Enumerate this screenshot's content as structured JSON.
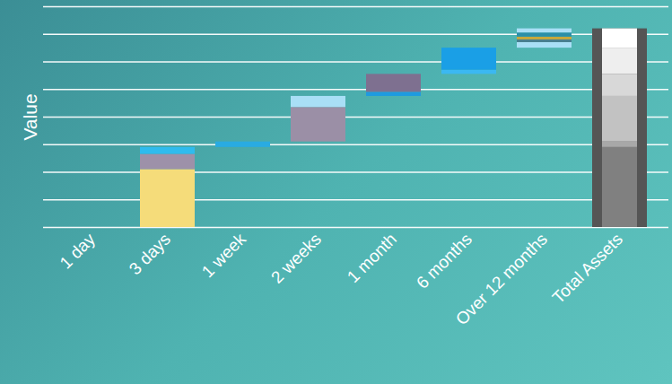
{
  "chart_data": {
    "type": "waterfall",
    "y_label": "Value",
    "categories": [
      "1 day",
      "3 days",
      "1 week",
      "2 weeks",
      "1 month",
      "6 months",
      "Over 12 months",
      "Total Assets"
    ],
    "values": [
      [],
      [
        2.1,
        0.55,
        0.25
      ],
      [
        0.2
      ],
      [
        1.25,
        0.4
      ],
      [
        0.15,
        0.65
      ],
      [
        0.15,
        0.8
      ],
      [
        0.2,
        0.1,
        0.1,
        0.15,
        0.15
      ],
      [
        2.9,
        0.2,
        1.65,
        0.8,
        0.95,
        0.7
      ]
    ],
    "colors": [
      [],
      [
        "#f5dc7a",
        "#9d91a9",
        "#2fbbee"
      ],
      [
        "#29abe2"
      ],
      [
        "#9b8fa6",
        "#a9dff6"
      ],
      [
        "#1e9be0",
        "#7e7090"
      ],
      [
        "#3bb8f2",
        "#1a9fe6"
      ],
      [
        "#a9dff6",
        "#4a7f8f",
        "#c8a83a",
        "#2a8fa8",
        "#a9dff6"
      ],
      [
        "#808080",
        "#a8a8a8",
        "#c2c2c2",
        "#d8d8d8",
        "#eeeeee",
        "#ffffff"
      ]
    ],
    "ylim": [
      0,
      8
    ],
    "yticks": [
      0,
      1,
      2,
      3,
      4,
      5,
      6,
      7,
      8
    ],
    "grid": true,
    "tick_labels": "x"
  }
}
